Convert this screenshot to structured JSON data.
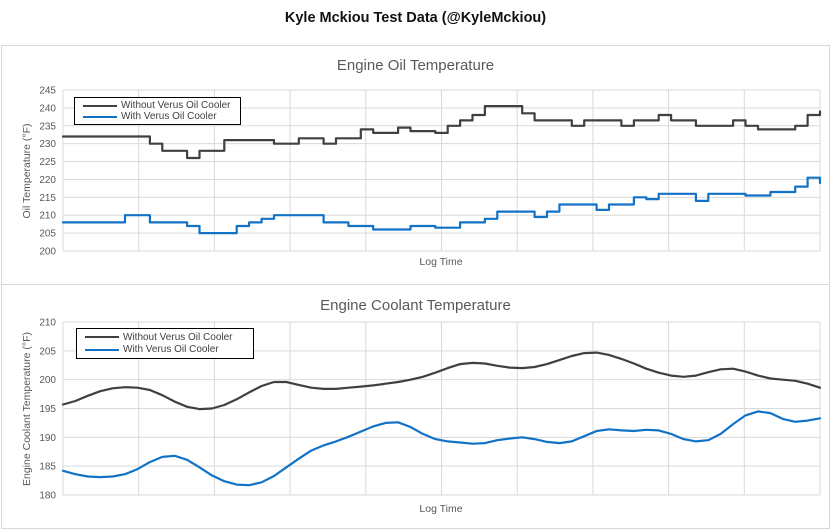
{
  "page_title": "Kyle Mckiou Test Data (@KyleMckiou)",
  "colors": {
    "series_without": "#404040",
    "series_with": "#1272c6",
    "gridline": "#d9d9d9",
    "axis_text": "#595959",
    "legend_border": "#000000"
  },
  "chart_data": [
    {
      "type": "line",
      "interpolation": "step",
      "title": "Engine Oil Temperature",
      "xlabel": "Log Time",
      "ylabel": "Oil Temperature (°F)",
      "ylim": [
        200,
        245
      ],
      "yticks": [
        200,
        205,
        210,
        215,
        220,
        225,
        230,
        235,
        240,
        245
      ],
      "xticks": [],
      "grid": "both",
      "legend_position": "top-left",
      "series": [
        {
          "name": "Without Verus Oil Cooler",
          "color_key": "series_without",
          "values": [
            232,
            232,
            232,
            232,
            232,
            232,
            232,
            230,
            228,
            228,
            226,
            228,
            228,
            231,
            231,
            231,
            231,
            230,
            230,
            231.5,
            231.5,
            230,
            231.5,
            231.5,
            234,
            233,
            233,
            234.5,
            233.5,
            233.5,
            233,
            235,
            236.5,
            238,
            240.5,
            240.5,
            240.5,
            238.5,
            236.5,
            236.5,
            236.5,
            235,
            236.5,
            236.5,
            236.5,
            235,
            236.5,
            236.5,
            238,
            236.5,
            236.5,
            235,
            235,
            235,
            236.5,
            235,
            234,
            234,
            234,
            235,
            238,
            239
          ]
        },
        {
          "name": "With Verus Oil Cooler",
          "color_key": "series_with",
          "values": [
            208,
            208,
            208,
            208,
            208,
            210,
            210,
            208,
            208,
            208,
            207,
            205,
            205,
            205,
            207,
            208,
            209,
            210,
            210,
            210,
            210,
            208,
            208,
            207,
            207,
            206,
            206,
            206,
            207,
            207,
            206.5,
            206.5,
            208,
            208,
            209,
            211,
            211,
            211,
            209.5,
            211,
            213,
            213,
            213,
            211.5,
            213,
            213,
            215,
            214.5,
            216,
            216,
            216,
            214,
            216,
            216,
            216,
            215.5,
            215.5,
            216.5,
            216.5,
            218,
            220.5,
            219
          ]
        }
      ]
    },
    {
      "type": "line",
      "interpolation": "linear",
      "title": "Engine Coolant Temperature",
      "xlabel": "Log Time",
      "ylabel": "Engine Coolant Temperature (°F)",
      "ylim": [
        180,
        210
      ],
      "yticks": [
        180,
        185,
        190,
        195,
        200,
        205,
        210
      ],
      "xticks": [],
      "grid": "both",
      "legend_position": "top-left",
      "series": [
        {
          "name": "Without Verus Oil Cooler",
          "color_key": "series_without",
          "values": [
            195.7,
            196.3,
            197.2,
            198.0,
            198.5,
            198.7,
            198.6,
            198.2,
            197.3,
            196.2,
            195.3,
            194.9,
            195.0,
            195.6,
            196.6,
            197.8,
            198.9,
            199.6,
            199.6,
            199.1,
            198.6,
            198.4,
            198.4,
            198.6,
            198.8,
            199.0,
            199.3,
            199.6,
            200.0,
            200.5,
            201.2,
            202.0,
            202.7,
            202.9,
            202.8,
            202.4,
            202.1,
            202.0,
            202.2,
            202.7,
            203.4,
            204.1,
            204.6,
            204.7,
            204.3,
            203.6,
            202.8,
            201.9,
            201.2,
            200.7,
            200.5,
            200.7,
            201.3,
            201.8,
            201.9,
            201.4,
            200.7,
            200.2,
            200.0,
            199.8,
            199.3,
            198.6
          ]
        },
        {
          "name": "With Verus Oil Cooler",
          "color_key": "series_with",
          "values": [
            184.2,
            183.6,
            183.2,
            183.1,
            183.2,
            183.6,
            184.5,
            185.7,
            186.6,
            186.8,
            186.1,
            184.8,
            183.4,
            182.4,
            181.8,
            181.7,
            182.2,
            183.3,
            184.8,
            186.3,
            187.7,
            188.6,
            189.3,
            190.1,
            191.0,
            191.9,
            192.5,
            192.6,
            191.8,
            190.6,
            189.7,
            189.3,
            189.1,
            188.9,
            189.0,
            189.5,
            189.8,
            190.0,
            189.7,
            189.2,
            189.0,
            189.3,
            190.2,
            191.1,
            191.4,
            191.2,
            191.1,
            191.3,
            191.2,
            190.6,
            189.7,
            189.3,
            189.5,
            190.6,
            192.3,
            193.8,
            194.5,
            194.2,
            193.2,
            192.7,
            192.9,
            193.3
          ]
        }
      ]
    }
  ]
}
